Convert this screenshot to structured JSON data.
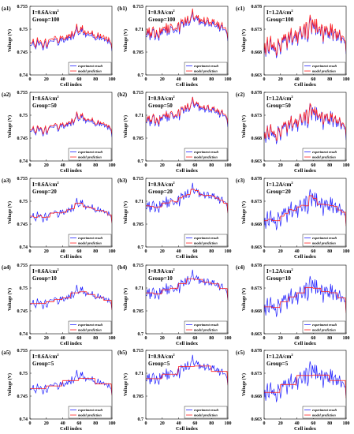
{
  "labels": {
    "xlabel": "Cell index",
    "ylabel": "Voltage (V)",
    "legend_exp": "experiment result",
    "legend_model": "model prediction",
    "current_unit": "A/cm",
    "current_sup": "2"
  },
  "colors": {
    "experiment": "#1f1fff",
    "model": "#ff2020",
    "axis": "#000000"
  },
  "columns": [
    {
      "current": "0.6",
      "yticks": [
        "0.755",
        "0.75",
        "0.745",
        "0.74"
      ],
      "ylim": [
        0.74,
        0.755
      ]
    },
    {
      "current": "0.9",
      "yticks": [
        "0.715",
        "0.71",
        "0.705",
        "0.7"
      ],
      "ylim": [
        0.7,
        0.715
      ]
    },
    {
      "current": "1.2",
      "yticks": [
        "0.678",
        "0.673",
        "0.668",
        "0.663"
      ],
      "ylim": [
        0.663,
        0.678
      ]
    }
  ],
  "rows": [
    {
      "group": "100"
    },
    {
      "group": "50"
    },
    {
      "group": "20"
    },
    {
      "group": "10"
    },
    {
      "group": "5"
    }
  ],
  "xticks": [
    "0",
    "20",
    "40",
    "60",
    "80",
    "100"
  ],
  "chart_data": [
    {
      "panel": "(a1)",
      "type": "line",
      "current": "I=0.6A/cm2",
      "group": "Group=100",
      "x_range": [
        0,
        100
      ],
      "ylim": [
        0.74,
        0.755
      ],
      "xlabel": "Cell index",
      "ylabel": "Voltage (V)",
      "legend": [
        "experiment result",
        "model prediction"
      ],
      "legend_position": "bottom-right"
    },
    {
      "panel": "(b1)",
      "type": "line",
      "current": "I=0.9A/cm2",
      "group": "Group=100",
      "x_range": [
        0,
        100
      ],
      "ylim": [
        0.7,
        0.715
      ],
      "xlabel": "Cell index",
      "ylabel": "Voltage (V)",
      "legend": [
        "experiment result",
        "model prediction"
      ],
      "legend_position": "bottom-right"
    },
    {
      "panel": "(c1)",
      "type": "line",
      "current": "I=1.2A/cm2",
      "group": "Group=100",
      "x_range": [
        0,
        100
      ],
      "ylim": [
        0.663,
        0.678
      ],
      "xlabel": "Cell index",
      "ylabel": "Voltage (V)",
      "legend": [
        "experiment result",
        "model prediction"
      ],
      "legend_position": "bottom-right"
    },
    {
      "panel": "(a2)",
      "type": "line",
      "current": "I=0.6A/cm2",
      "group": "Group=50",
      "x_range": [
        0,
        100
      ],
      "ylim": [
        0.74,
        0.755
      ],
      "xlabel": "Cell index",
      "ylabel": "Voltage (V)",
      "legend": [
        "experiment result",
        "model prediction"
      ],
      "legend_position": "bottom-right"
    },
    {
      "panel": "(b2)",
      "type": "line",
      "current": "I=0.9A/cm2",
      "group": "Group=50",
      "x_range": [
        0,
        100
      ],
      "ylim": [
        0.7,
        0.715
      ],
      "xlabel": "Cell index",
      "ylabel": "Voltage (V)",
      "legend": [
        "experiment result",
        "model prediction"
      ],
      "legend_position": "bottom-right"
    },
    {
      "panel": "(c2)",
      "type": "line",
      "current": "I=1.2A/cm2",
      "group": "Group=50",
      "x_range": [
        0,
        100
      ],
      "ylim": [
        0.663,
        0.678
      ],
      "xlabel": "Cell index",
      "ylabel": "Voltage (V)",
      "legend": [
        "experiment result",
        "model prediction"
      ],
      "legend_position": "bottom-right"
    },
    {
      "panel": "(a3)",
      "type": "line",
      "current": "I=0.6A/cm2",
      "group": "Group=20",
      "x_range": [
        0,
        100
      ],
      "ylim": [
        0.74,
        0.755
      ],
      "xlabel": "Cell index",
      "ylabel": "Voltage (V)",
      "legend": [
        "experiment result",
        "model prediction"
      ],
      "legend_position": "bottom-right"
    },
    {
      "panel": "(b3)",
      "type": "line",
      "current": "I=0.9A/cm2",
      "group": "Group=20",
      "x_range": [
        0,
        100
      ],
      "ylim": [
        0.7,
        0.715
      ],
      "xlabel": "Cell index",
      "ylabel": "Voltage (V)",
      "legend": [
        "experiment result",
        "model prediction"
      ],
      "legend_position": "bottom-right"
    },
    {
      "panel": "(c3)",
      "type": "line",
      "current": "I=1.2A/cm2",
      "group": "Group=20",
      "x_range": [
        0,
        100
      ],
      "ylim": [
        0.663,
        0.678
      ],
      "xlabel": "Cell index",
      "ylabel": "Voltage (V)",
      "legend": [
        "experiment result",
        "model prediction"
      ],
      "legend_position": "bottom-right"
    },
    {
      "panel": "(a4)",
      "type": "line",
      "current": "I=0.6A/cm2",
      "group": "Group=10",
      "x_range": [
        0,
        100
      ],
      "ylim": [
        0.74,
        0.755
      ],
      "xlabel": "Cell index",
      "ylabel": "Voltage (V)",
      "legend": [
        "experiment result",
        "model prediction"
      ],
      "legend_position": "bottom-right"
    },
    {
      "panel": "(b4)",
      "type": "line",
      "current": "I=0.9A/cm2",
      "group": "Group=10",
      "x_range": [
        0,
        100
      ],
      "ylim": [
        0.7,
        0.715
      ],
      "xlabel": "Cell index",
      "ylabel": "Voltage (V)",
      "legend": [
        "experiment result",
        "model prediction"
      ],
      "legend_position": "bottom-right"
    },
    {
      "panel": "(c4)",
      "type": "line",
      "current": "I=1.2A/cm2",
      "group": "Group=10",
      "x_range": [
        0,
        100
      ],
      "ylim": [
        0.663,
        0.678
      ],
      "xlabel": "Cell index",
      "ylabel": "Voltage (V)",
      "legend": [
        "experiment result",
        "model prediction"
      ],
      "legend_position": "bottom-right"
    },
    {
      "panel": "(a5)",
      "type": "line",
      "current": "I=0.6A/cm2",
      "group": "Group=5",
      "x_range": [
        0,
        100
      ],
      "ylim": [
        0.74,
        0.755
      ],
      "xlabel": "Cell index",
      "ylabel": "Voltage (V)",
      "legend": [
        "experiment result",
        "model prediction"
      ],
      "legend_position": "bottom-right"
    },
    {
      "panel": "(b5)",
      "type": "line",
      "current": "I=0.9A/cm2",
      "group": "Group=5",
      "x_range": [
        0,
        100
      ],
      "ylim": [
        0.7,
        0.715
      ],
      "xlabel": "Cell index",
      "ylabel": "Voltage (V)",
      "legend": [
        "experiment result",
        "model prediction"
      ],
      "legend_position": "bottom-right"
    },
    {
      "panel": "(c5)",
      "type": "line",
      "current": "I=1.2A/cm2",
      "group": "Group=5",
      "x_range": [
        0,
        100
      ],
      "ylim": [
        0.663,
        0.678
      ],
      "xlabel": "Cell index",
      "ylabel": "Voltage (V)",
      "legend": [
        "experiment result",
        "model prediction"
      ],
      "legend_position": "bottom-right"
    }
  ],
  "cells": [
    [
      0.7465,
      0.7464,
      0.7465,
      0.7468,
      0.7474,
      0.7463,
      0.7462,
      0.7457,
      0.7464,
      0.7477,
      0.747,
      0.7465,
      0.7468,
      0.7471,
      0.7468,
      0.7461,
      0.7454,
      0.7462,
      0.7471,
      0.7474,
      0.7459,
      0.7458,
      0.7466,
      0.7471,
      0.7473,
      0.7475,
      0.7474,
      0.7474,
      0.7474,
      0.7473,
      0.7479,
      0.7479,
      0.7477,
      0.7476,
      0.7465,
      0.7466,
      0.7472,
      0.7481,
      0.7474,
      0.7479,
      0.7481,
      0.7472,
      0.7472,
      0.7478,
      0.7476,
      0.7482,
      0.7475,
      0.7485,
      0.7481,
      0.7483,
      0.7476,
      0.7493,
      0.7484,
      0.7479,
      0.7485,
      0.7492,
      0.7494,
      0.7507,
      0.7496,
      0.7488,
      0.749,
      0.749,
      0.7502,
      0.7494,
      0.7503,
      0.7488,
      0.7488,
      0.7492,
      0.7483,
      0.7488,
      0.7487,
      0.749,
      0.7486,
      0.7486,
      0.7487,
      0.7485,
      0.7493,
      0.7482,
      0.7483,
      0.7479,
      0.7476,
      0.7478,
      0.7479,
      0.7488,
      0.748,
      0.7477,
      0.7484,
      0.7477,
      0.7479,
      0.748,
      0.7481,
      0.7474,
      0.7476,
      0.7478,
      0.7474,
      0.7469,
      0.7477,
      0.7471,
      0.7468,
      0.7466,
      0.7452
    ],
    [
      0.7084,
      0.7083,
      0.7097,
      0.7087,
      0.7099,
      0.7076,
      0.709,
      0.7081,
      0.7097,
      0.71,
      0.7095,
      0.7077,
      0.708,
      0.7094,
      0.7086,
      0.7081,
      0.7075,
      0.71,
      0.7087,
      0.7095,
      0.709,
      0.7101,
      0.7098,
      0.7099,
      0.7092,
      0.711,
      0.7086,
      0.7104,
      0.7088,
      0.7094,
      0.7106,
      0.7105,
      0.7103,
      0.7096,
      0.7092,
      0.7095,
      0.7099,
      0.7097,
      0.7094,
      0.7108,
      0.7111,
      0.7089,
      0.7105,
      0.7118,
      0.7113,
      0.7115,
      0.7104,
      0.711,
      0.7122,
      0.7107,
      0.7115,
      0.7126,
      0.7108,
      0.7109,
      0.7115,
      0.7124,
      0.7127,
      0.714,
      0.7122,
      0.7117,
      0.7121,
      0.7123,
      0.7127,
      0.712,
      0.7125,
      0.7109,
      0.712,
      0.7112,
      0.7116,
      0.7114,
      0.7112,
      0.7121,
      0.7106,
      0.7112,
      0.7111,
      0.712,
      0.7119,
      0.7107,
      0.711,
      0.7109,
      0.7106,
      0.7117,
      0.7111,
      0.7117,
      0.7106,
      0.7105,
      0.7106,
      0.7112,
      0.7101,
      0.711,
      0.7095,
      0.7101,
      0.7107,
      0.7109,
      0.7098,
      0.7099,
      0.7099,
      0.7098,
      0.7094,
      0.7089,
      0.7074
    ],
    [
      0.6675,
      0.6694,
      0.667,
      0.669,
      0.6708,
      0.668,
      0.6677,
      0.67,
      0.671,
      0.6685,
      0.6693,
      0.6683,
      0.6696,
      0.6681,
      0.6686,
      0.6667,
      0.6675,
      0.6706,
      0.6697,
      0.6692,
      0.6675,
      0.6689,
      0.6708,
      0.67,
      0.6714,
      0.6704,
      0.6715,
      0.6704,
      0.6684,
      0.6707,
      0.6719,
      0.67,
      0.6715,
      0.6729,
      0.6695,
      0.6701,
      0.6711,
      0.6711,
      0.6722,
      0.6703,
      0.6721,
      0.6694,
      0.6717,
      0.6722,
      0.6733,
      0.672,
      0.6708,
      0.6713,
      0.6729,
      0.6736,
      0.6707,
      0.6741,
      0.6739,
      0.6702,
      0.6711,
      0.6741,
      0.6756,
      0.6747,
      0.6719,
      0.6747,
      0.6736,
      0.673,
      0.6749,
      0.6717,
      0.6747,
      0.672,
      0.6722,
      0.6729,
      0.673,
      0.6715,
      0.6736,
      0.6732,
      0.6698,
      0.6718,
      0.6732,
      0.6717,
      0.6732,
      0.6729,
      0.6711,
      0.672,
      0.6709,
      0.6739,
      0.6716,
      0.6736,
      0.6704,
      0.672,
      0.6723,
      0.6726,
      0.6704,
      0.672,
      0.6705,
      0.6715,
      0.6725,
      0.671,
      0.6699,
      0.6712,
      0.671,
      0.6707,
      0.67,
      0.6701,
      0.6676
    ]
  ]
}
